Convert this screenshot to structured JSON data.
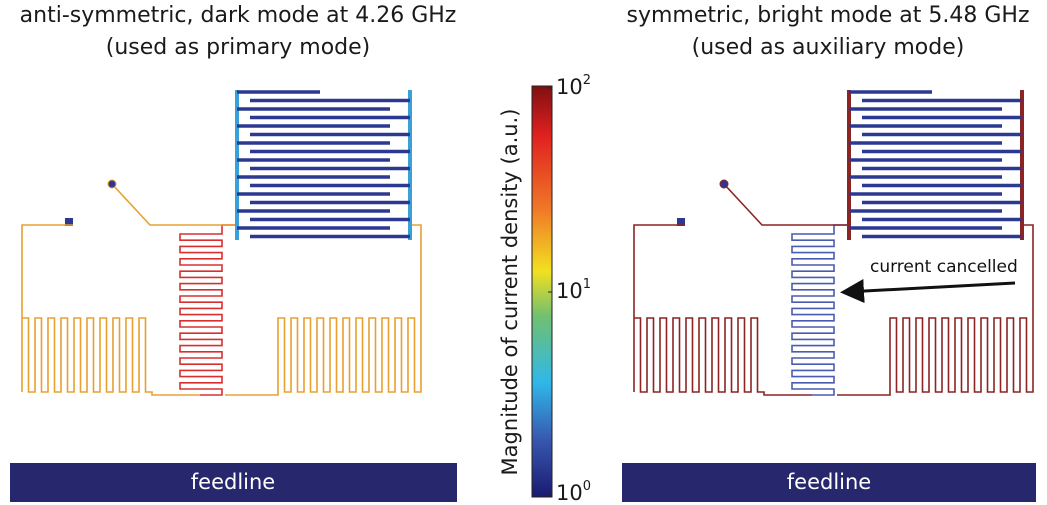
{
  "left_panel": {
    "title": [
      "anti-symmetric, dark mode at 4.26 GHz",
      "(used as primary mode)"
    ],
    "feedline": "feedline"
  },
  "right_panel": {
    "title": [
      "symmetric, bright mode at 5.48 GHz",
      "(used as auxiliary mode)"
    ],
    "feedline": "feedline",
    "annotation": "current cancelled"
  },
  "colorbar": {
    "label": "Magnitude of current density (a.u.)",
    "ticks": [
      {
        "base": "10",
        "exponent": "2"
      },
      {
        "base": "10",
        "exponent": "1"
      },
      {
        "base": "10",
        "exponent": "0"
      }
    ]
  }
}
